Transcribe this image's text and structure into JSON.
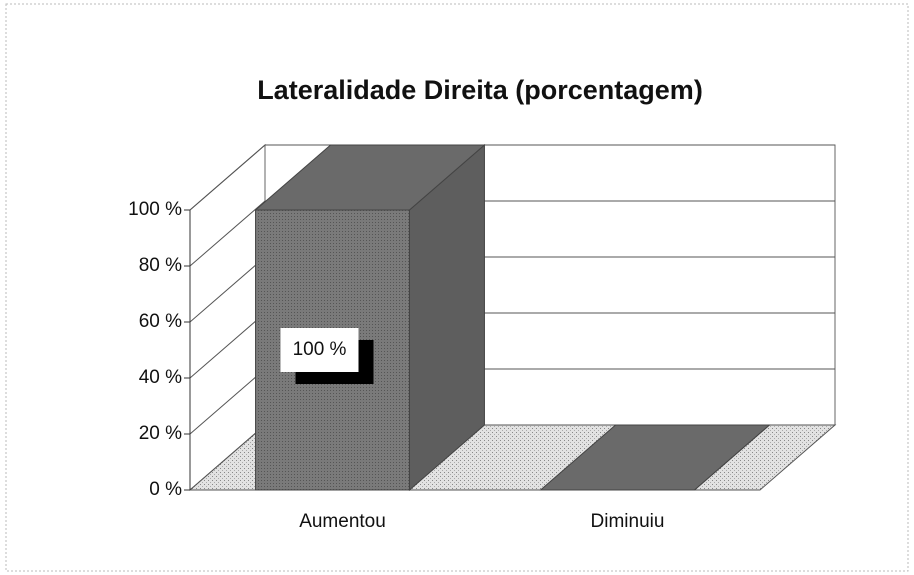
{
  "chart_data": {
    "type": "bar3d",
    "title": "Lateralidade Direita (porcentagem)",
    "categories": [
      "Aumentou",
      "Diminuiu"
    ],
    "values": [
      100,
      0
    ],
    "value_labels": [
      "100 %",
      null
    ],
    "color": "#7a7a7a",
    "ylim": [
      0,
      100
    ],
    "yticks": [
      {
        "value": 0,
        "label": "0 %"
      },
      {
        "value": 20,
        "label": "20 %"
      },
      {
        "value": 40,
        "label": "40 %"
      },
      {
        "value": 60,
        "label": "60 %"
      },
      {
        "value": 80,
        "label": "80 %"
      },
      {
        "value": 100,
        "label": "100 %"
      }
    ],
    "grid": true
  }
}
